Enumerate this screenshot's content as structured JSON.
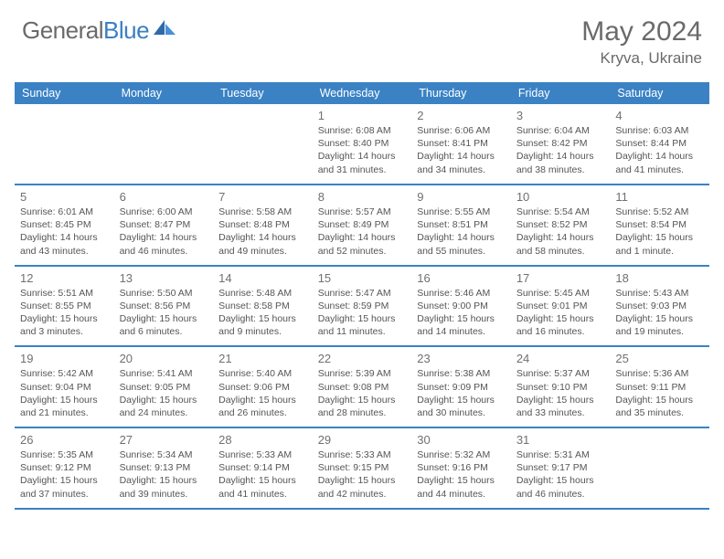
{
  "brand": {
    "part1": "General",
    "part2": "Blue"
  },
  "title": {
    "month_year": "May 2024",
    "location": "Kryva, Ukraine"
  },
  "colors": {
    "header_bg": "#3b82c4",
    "header_text": "#ffffff",
    "border": "#3b82c4",
    "text": "#555555",
    "daynum": "#707070",
    "brand_gray": "#6a6a6a",
    "brand_blue": "#3b7fc4"
  },
  "dow": [
    "Sunday",
    "Monday",
    "Tuesday",
    "Wednesday",
    "Thursday",
    "Friday",
    "Saturday"
  ],
  "weeks": [
    [
      null,
      null,
      null,
      {
        "n": "1",
        "sr": "6:08 AM",
        "ss": "8:40 PM",
        "dl": "14 hours and 31 minutes."
      },
      {
        "n": "2",
        "sr": "6:06 AM",
        "ss": "8:41 PM",
        "dl": "14 hours and 34 minutes."
      },
      {
        "n": "3",
        "sr": "6:04 AM",
        "ss": "8:42 PM",
        "dl": "14 hours and 38 minutes."
      },
      {
        "n": "4",
        "sr": "6:03 AM",
        "ss": "8:44 PM",
        "dl": "14 hours and 41 minutes."
      }
    ],
    [
      {
        "n": "5",
        "sr": "6:01 AM",
        "ss": "8:45 PM",
        "dl": "14 hours and 43 minutes."
      },
      {
        "n": "6",
        "sr": "6:00 AM",
        "ss": "8:47 PM",
        "dl": "14 hours and 46 minutes."
      },
      {
        "n": "7",
        "sr": "5:58 AM",
        "ss": "8:48 PM",
        "dl": "14 hours and 49 minutes."
      },
      {
        "n": "8",
        "sr": "5:57 AM",
        "ss": "8:49 PM",
        "dl": "14 hours and 52 minutes."
      },
      {
        "n": "9",
        "sr": "5:55 AM",
        "ss": "8:51 PM",
        "dl": "14 hours and 55 minutes."
      },
      {
        "n": "10",
        "sr": "5:54 AM",
        "ss": "8:52 PM",
        "dl": "14 hours and 58 minutes."
      },
      {
        "n": "11",
        "sr": "5:52 AM",
        "ss": "8:54 PM",
        "dl": "15 hours and 1 minute."
      }
    ],
    [
      {
        "n": "12",
        "sr": "5:51 AM",
        "ss": "8:55 PM",
        "dl": "15 hours and 3 minutes."
      },
      {
        "n": "13",
        "sr": "5:50 AM",
        "ss": "8:56 PM",
        "dl": "15 hours and 6 minutes."
      },
      {
        "n": "14",
        "sr": "5:48 AM",
        "ss": "8:58 PM",
        "dl": "15 hours and 9 minutes."
      },
      {
        "n": "15",
        "sr": "5:47 AM",
        "ss": "8:59 PM",
        "dl": "15 hours and 11 minutes."
      },
      {
        "n": "16",
        "sr": "5:46 AM",
        "ss": "9:00 PM",
        "dl": "15 hours and 14 minutes."
      },
      {
        "n": "17",
        "sr": "5:45 AM",
        "ss": "9:01 PM",
        "dl": "15 hours and 16 minutes."
      },
      {
        "n": "18",
        "sr": "5:43 AM",
        "ss": "9:03 PM",
        "dl": "15 hours and 19 minutes."
      }
    ],
    [
      {
        "n": "19",
        "sr": "5:42 AM",
        "ss": "9:04 PM",
        "dl": "15 hours and 21 minutes."
      },
      {
        "n": "20",
        "sr": "5:41 AM",
        "ss": "9:05 PM",
        "dl": "15 hours and 24 minutes."
      },
      {
        "n": "21",
        "sr": "5:40 AM",
        "ss": "9:06 PM",
        "dl": "15 hours and 26 minutes."
      },
      {
        "n": "22",
        "sr": "5:39 AM",
        "ss": "9:08 PM",
        "dl": "15 hours and 28 minutes."
      },
      {
        "n": "23",
        "sr": "5:38 AM",
        "ss": "9:09 PM",
        "dl": "15 hours and 30 minutes."
      },
      {
        "n": "24",
        "sr": "5:37 AM",
        "ss": "9:10 PM",
        "dl": "15 hours and 33 minutes."
      },
      {
        "n": "25",
        "sr": "5:36 AM",
        "ss": "9:11 PM",
        "dl": "15 hours and 35 minutes."
      }
    ],
    [
      {
        "n": "26",
        "sr": "5:35 AM",
        "ss": "9:12 PM",
        "dl": "15 hours and 37 minutes."
      },
      {
        "n": "27",
        "sr": "5:34 AM",
        "ss": "9:13 PM",
        "dl": "15 hours and 39 minutes."
      },
      {
        "n": "28",
        "sr": "5:33 AM",
        "ss": "9:14 PM",
        "dl": "15 hours and 41 minutes."
      },
      {
        "n": "29",
        "sr": "5:33 AM",
        "ss": "9:15 PM",
        "dl": "15 hours and 42 minutes."
      },
      {
        "n": "30",
        "sr": "5:32 AM",
        "ss": "9:16 PM",
        "dl": "15 hours and 44 minutes."
      },
      {
        "n": "31",
        "sr": "5:31 AM",
        "ss": "9:17 PM",
        "dl": "15 hours and 46 minutes."
      },
      null
    ]
  ],
  "labels": {
    "sunrise": "Sunrise:",
    "sunset": "Sunset:",
    "daylight": "Daylight:"
  }
}
